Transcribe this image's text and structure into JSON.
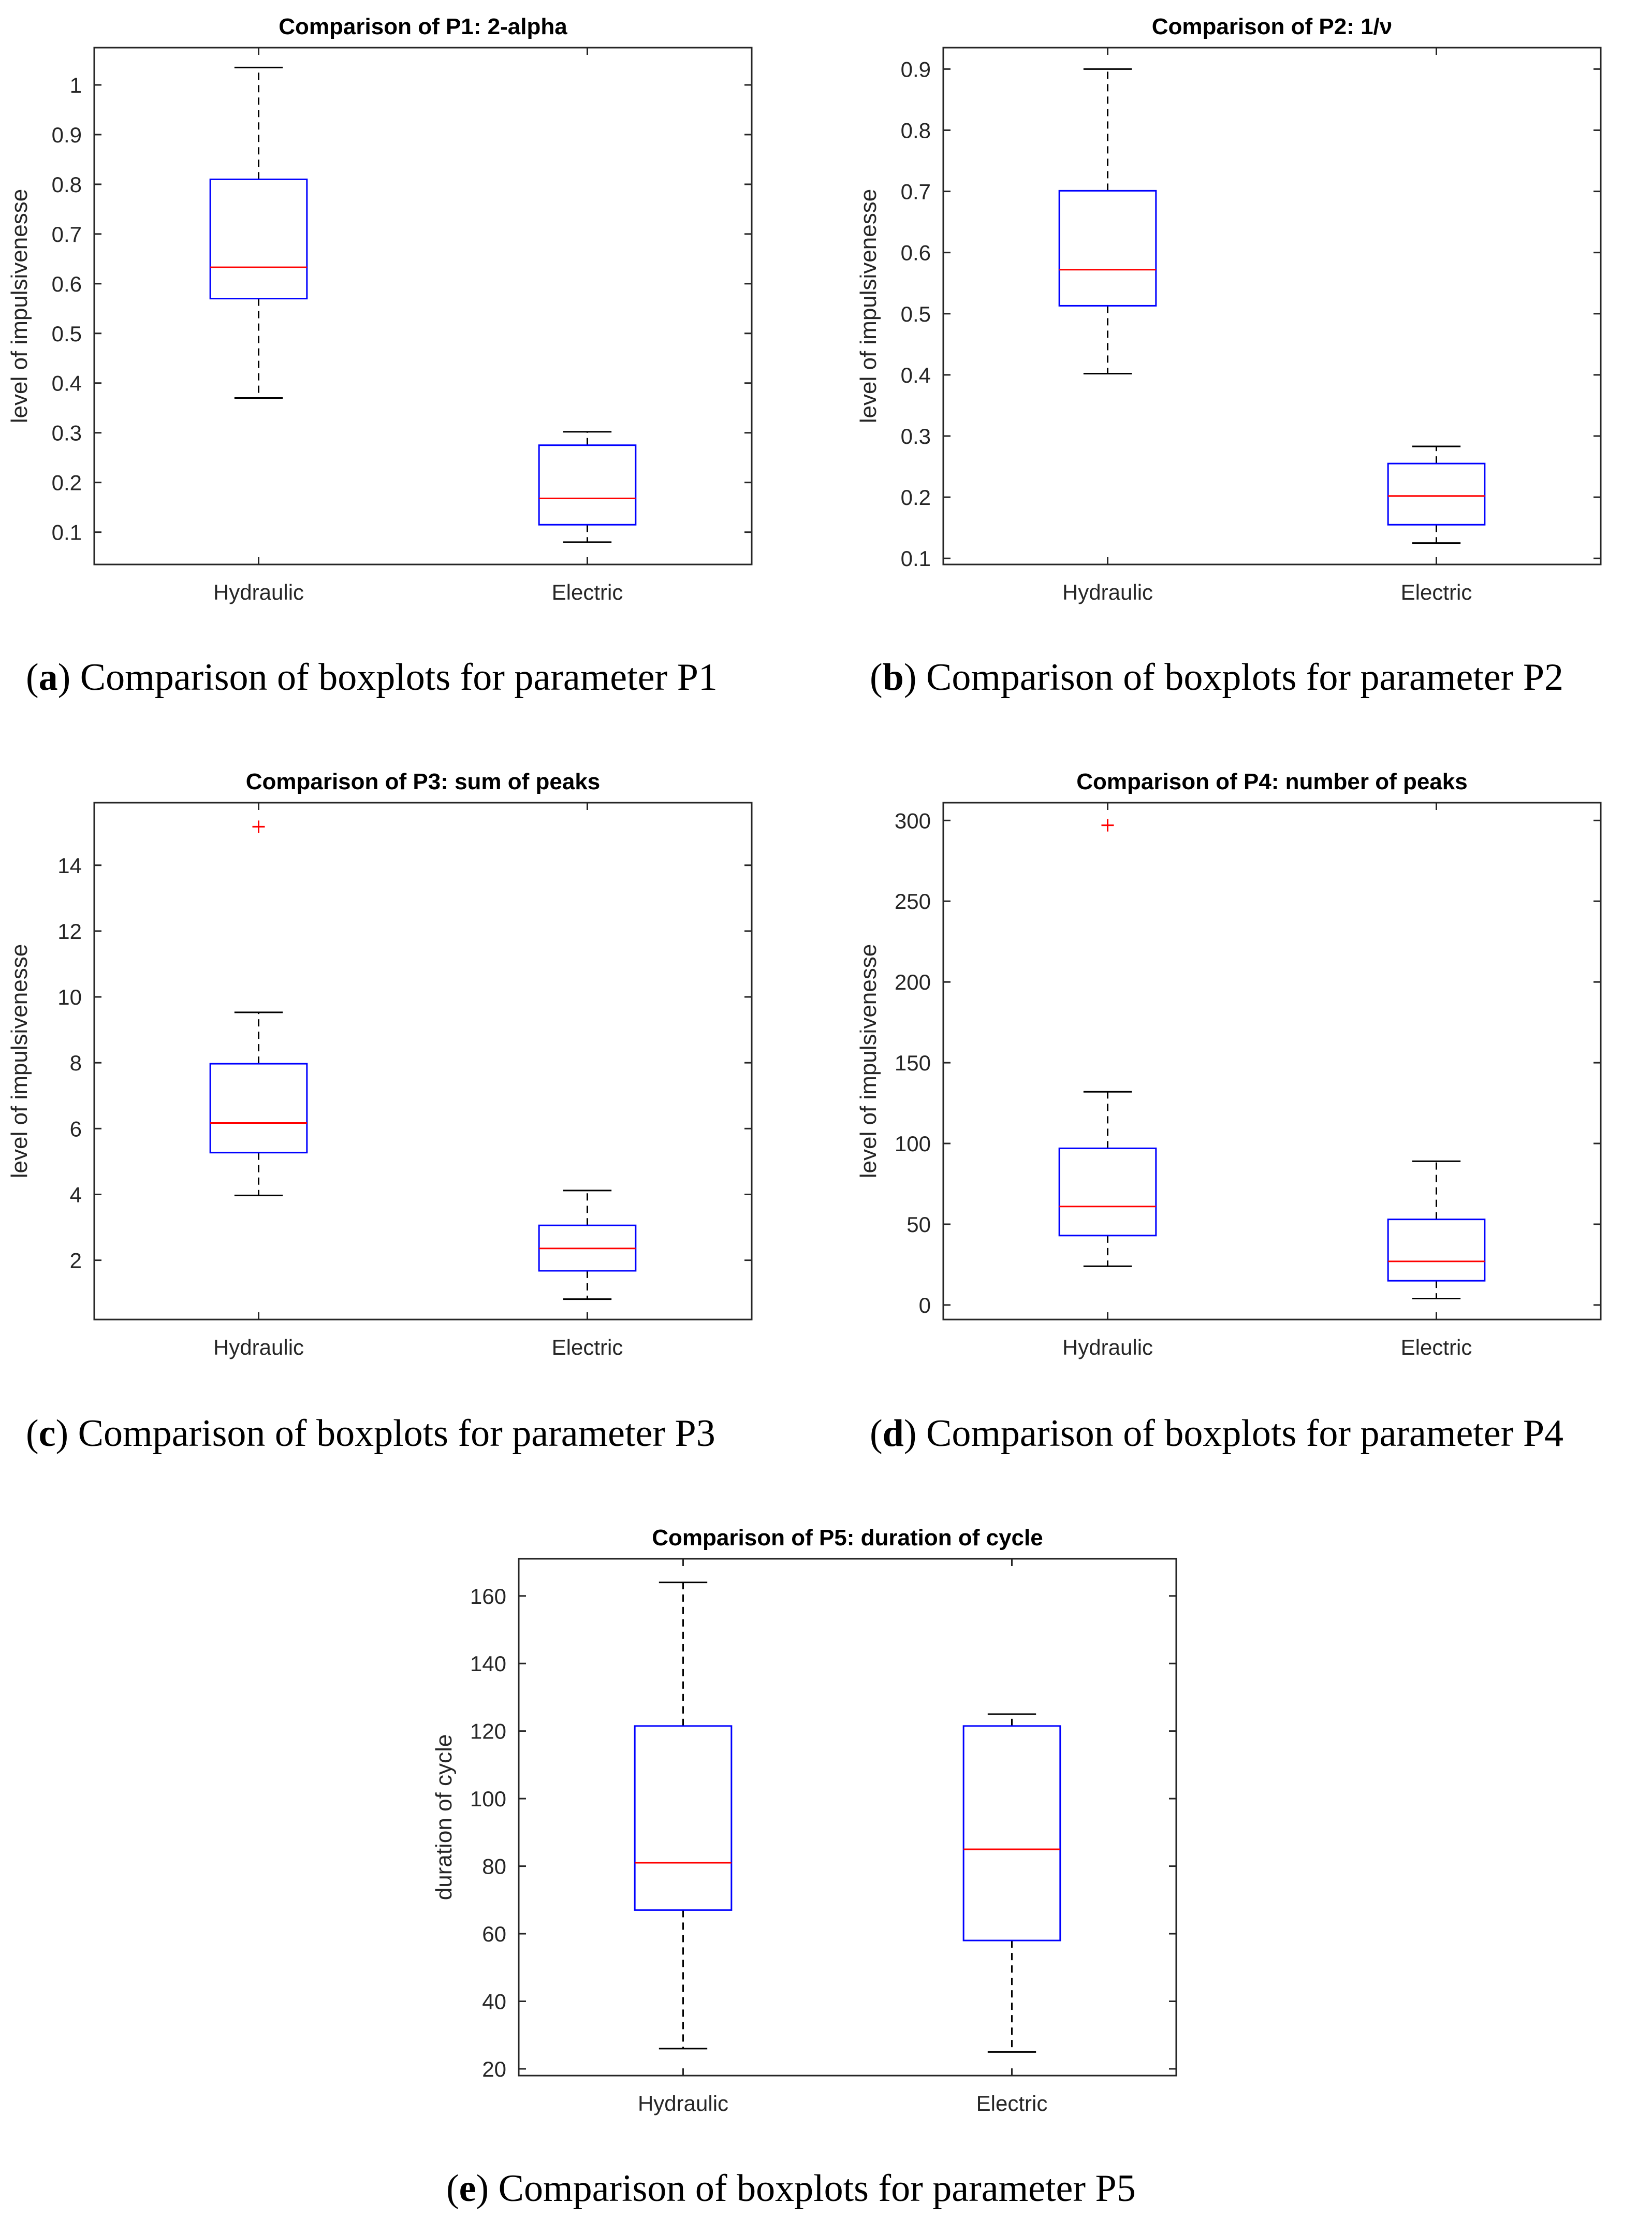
{
  "colors": {
    "box": "#0000ff",
    "median": "#ff0000",
    "whisker": "#000000",
    "outlier": "#ff0000",
    "axis": "#262626"
  },
  "chart_data": [
    {
      "id": "a",
      "type": "boxplot",
      "title": "Comparison of P1:  2-alpha",
      "ylabel": "level of impulsivenesse",
      "categories": [
        "Hydraulic",
        "Electric"
      ],
      "ylim": [
        0.035,
        1.075
      ],
      "yticks": [
        0.1,
        0.2,
        0.3,
        0.4,
        0.5,
        0.6,
        0.7,
        0.8,
        0.9,
        1
      ],
      "ytick_labels": [
        "0.1",
        "0.2",
        "0.3",
        "0.4",
        "0.5",
        "0.6",
        "0.7",
        "0.8",
        "0.9",
        "1"
      ],
      "boxes": [
        {
          "min": 0.37,
          "q1": 0.57,
          "median": 0.633,
          "q3": 0.81,
          "max": 1.035,
          "outliers": []
        },
        {
          "min": 0.08,
          "q1": 0.115,
          "median": 0.168,
          "q3": 0.275,
          "max": 0.302,
          "outliers": []
        }
      ],
      "caption_letter": "a",
      "caption_text": "Comparison of boxplots for parameter P1"
    },
    {
      "id": "b",
      "type": "boxplot",
      "title": "Comparison of P2:  1/ν",
      "ylabel": "level of impulsivenesse",
      "categories": [
        "Hydraulic",
        "Electric"
      ],
      "ylim": [
        0.09,
        0.935
      ],
      "yticks": [
        0.1,
        0.2,
        0.3,
        0.4,
        0.5,
        0.6,
        0.7,
        0.8,
        0.9
      ],
      "ytick_labels": [
        "0.1",
        "0.2",
        "0.3",
        "0.4",
        "0.5",
        "0.6",
        "0.7",
        "0.8",
        "0.9"
      ],
      "boxes": [
        {
          "min": 0.402,
          "q1": 0.513,
          "median": 0.572,
          "q3": 0.701,
          "max": 0.9,
          "outliers": []
        },
        {
          "min": 0.125,
          "q1": 0.155,
          "median": 0.202,
          "q3": 0.255,
          "max": 0.283,
          "outliers": []
        }
      ],
      "caption_letter": "b",
      "caption_text": "Comparison of boxplots for parameter P2"
    },
    {
      "id": "c",
      "type": "boxplot",
      "title": "Comparison of P3:  sum of peaks",
      "ylabel": "level of impulsivenesse",
      "categories": [
        "Hydraulic",
        "Electric"
      ],
      "ylim": [
        0.2,
        15.9
      ],
      "yticks": [
        2,
        4,
        6,
        8,
        10,
        12,
        14
      ],
      "ytick_labels": [
        "2",
        "4",
        "6",
        "8",
        "10",
        "12",
        "14"
      ],
      "boxes": [
        {
          "min": 3.97,
          "q1": 5.27,
          "median": 6.17,
          "q3": 7.97,
          "max": 9.53,
          "outliers": [
            15.17
          ]
        },
        {
          "min": 0.82,
          "q1": 1.68,
          "median": 2.36,
          "q3": 3.06,
          "max": 4.12,
          "outliers": []
        }
      ],
      "caption_letter": "c",
      "caption_text": "Comparison of boxplots for parameter P3"
    },
    {
      "id": "d",
      "type": "boxplot",
      "title": "Comparison of P4:  number of peaks",
      "ylabel": "level of impulsivenesse",
      "categories": [
        "Hydraulic",
        "Electric"
      ],
      "ylim": [
        -9,
        311
      ],
      "yticks": [
        0,
        50,
        100,
        150,
        200,
        250,
        300
      ],
      "ytick_labels": [
        "0",
        "50",
        "100",
        "150",
        "200",
        "250",
        "300"
      ],
      "boxes": [
        {
          "min": 24,
          "q1": 43,
          "median": 61,
          "q3": 97,
          "max": 132,
          "outliers": [
            297
          ]
        },
        {
          "min": 4,
          "q1": 15,
          "median": 27,
          "q3": 53,
          "max": 89,
          "outliers": []
        }
      ],
      "caption_letter": "d",
      "caption_text": "Comparison of boxplots for parameter P4"
    },
    {
      "id": "e",
      "type": "boxplot",
      "title": "Comparison of P5:  duration of cycle",
      "ylabel": "duration of cycle",
      "categories": [
        "Hydraulic",
        "Electric"
      ],
      "ylim": [
        18,
        171
      ],
      "yticks": [
        20,
        40,
        60,
        80,
        100,
        120,
        140,
        160
      ],
      "ytick_labels": [
        "20",
        "40",
        "60",
        "80",
        "100",
        "120",
        "140",
        "160"
      ],
      "boxes": [
        {
          "min": 26,
          "q1": 67,
          "median": 81,
          "q3": 121.5,
          "max": 164,
          "outliers": []
        },
        {
          "min": 25,
          "q1": 58,
          "median": 85,
          "q3": 121.5,
          "max": 125,
          "outliers": []
        }
      ],
      "caption_letter": "e",
      "caption_text": "Comparison of boxplots for parameter P5"
    }
  ]
}
